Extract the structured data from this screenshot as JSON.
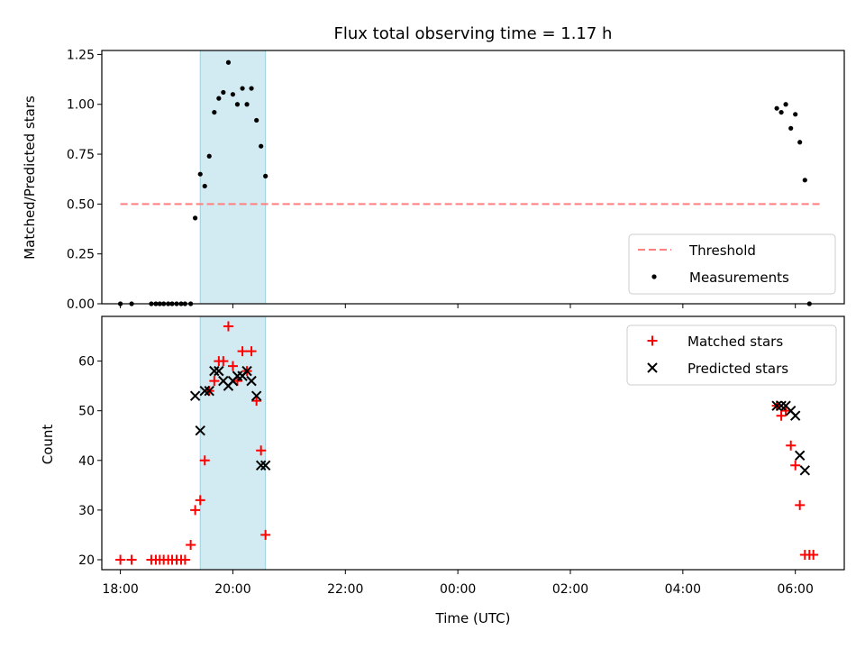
{
  "chart_data": [
    {
      "type": "scatter",
      "title": "Flux total observing time = 1.17 h",
      "xlabel": "",
      "ylabel": "Matched/Predicted stars",
      "xlim": [
        17.67,
        30.87
      ],
      "ylim": [
        0,
        1.27
      ],
      "yticks": [
        0,
        0.25,
        0.5,
        0.75,
        1.0,
        1.25
      ],
      "ytick_labels": [
        "0.00",
        "0.25",
        "0.50",
        "0.75",
        "1.00",
        "1.25"
      ],
      "shaded_interval": {
        "x0": 19.42,
        "x1": 20.58,
        "color": "#add8e6"
      },
      "legend": {
        "position": "bottom-right",
        "entries": [
          "Threshold",
          "Measurements"
        ]
      },
      "series": [
        {
          "name": "Threshold",
          "kind": "dashed-line",
          "color": "#ff7f7f",
          "x": [
            18.0,
            30.45
          ],
          "y": [
            0.5,
            0.5
          ]
        },
        {
          "name": "Measurements",
          "kind": "points",
          "color": "#000000",
          "x": [
            18.0,
            18.2,
            18.55,
            18.63,
            18.7,
            18.77,
            18.85,
            18.92,
            19.0,
            19.08,
            19.15,
            19.25,
            19.33,
            19.42,
            19.5,
            19.58,
            19.67,
            19.75,
            19.83,
            19.92,
            20.0,
            20.08,
            20.17,
            20.25,
            20.33,
            20.42,
            20.5,
            20.58,
            29.67,
            29.75,
            29.83,
            29.92,
            30.0,
            30.08,
            30.17,
            30.25
          ],
          "y": [
            0.0,
            0.0,
            0.0,
            0.0,
            0.0,
            0.0,
            0.0,
            0.0,
            0.0,
            0.0,
            0.0,
            0.0,
            0.43,
            0.65,
            0.59,
            0.74,
            0.96,
            1.03,
            1.06,
            1.21,
            1.05,
            1.0,
            1.08,
            1.0,
            1.08,
            0.92,
            0.79,
            0.64,
            0.98,
            0.96,
            1.0,
            0.88,
            0.95,
            0.81,
            0.62,
            0.0
          ]
        }
      ]
    },
    {
      "type": "scatter",
      "title": "",
      "xlabel": "Time (UTC)",
      "ylabel": "Count",
      "xlim": [
        17.67,
        30.87
      ],
      "ylim": [
        18,
        69
      ],
      "yticks": [
        20,
        30,
        40,
        50,
        60
      ],
      "xticks": [
        18,
        20,
        22,
        24,
        26,
        28,
        30
      ],
      "xtick_labels": [
        "18:00",
        "20:00",
        "22:00",
        "00:00",
        "02:00",
        "04:00",
        "06:00"
      ],
      "shaded_interval": {
        "x0": 19.42,
        "x1": 20.58,
        "color": "#add8e6"
      },
      "legend": {
        "position": "top-right",
        "entries": [
          "Matched stars",
          "Predicted stars"
        ]
      },
      "series": [
        {
          "name": "Matched stars",
          "marker": "plus",
          "color": "#ff0000",
          "x": [
            18.0,
            18.2,
            18.55,
            18.63,
            18.7,
            18.77,
            18.85,
            18.92,
            19.0,
            19.08,
            19.15,
            19.25,
            19.33,
            19.42,
            19.5,
            19.58,
            19.67,
            19.75,
            19.83,
            19.92,
            20.0,
            20.08,
            20.17,
            20.25,
            20.33,
            20.42,
            20.5,
            20.58,
            29.67,
            29.75,
            29.83,
            29.92,
            30.0,
            30.08,
            30.17,
            30.25,
            30.32
          ],
          "y": [
            20,
            20,
            20,
            20,
            20,
            20,
            20,
            20,
            20,
            20,
            20,
            23,
            30,
            32,
            40,
            54,
            56,
            60,
            60,
            67,
            59,
            56,
            62,
            58,
            62,
            52,
            42,
            25,
            51,
            49,
            50,
            43,
            39,
            31,
            21,
            21,
            21
          ]
        },
        {
          "name": "Predicted stars",
          "marker": "x",
          "color": "#000000",
          "x": [
            19.33,
            19.42,
            19.5,
            19.58,
            19.67,
            19.75,
            19.83,
            19.92,
            20.0,
            20.08,
            20.17,
            20.25,
            20.33,
            20.42,
            20.5,
            20.58,
            29.67,
            29.75,
            29.83,
            29.92,
            30.0,
            30.08,
            30.17
          ],
          "y": [
            53,
            46,
            54,
            54,
            58,
            58,
            56,
            55,
            56,
            57,
            57,
            58,
            56,
            53,
            39,
            39,
            51,
            51,
            51,
            50,
            49,
            41,
            38
          ]
        }
      ]
    }
  ]
}
